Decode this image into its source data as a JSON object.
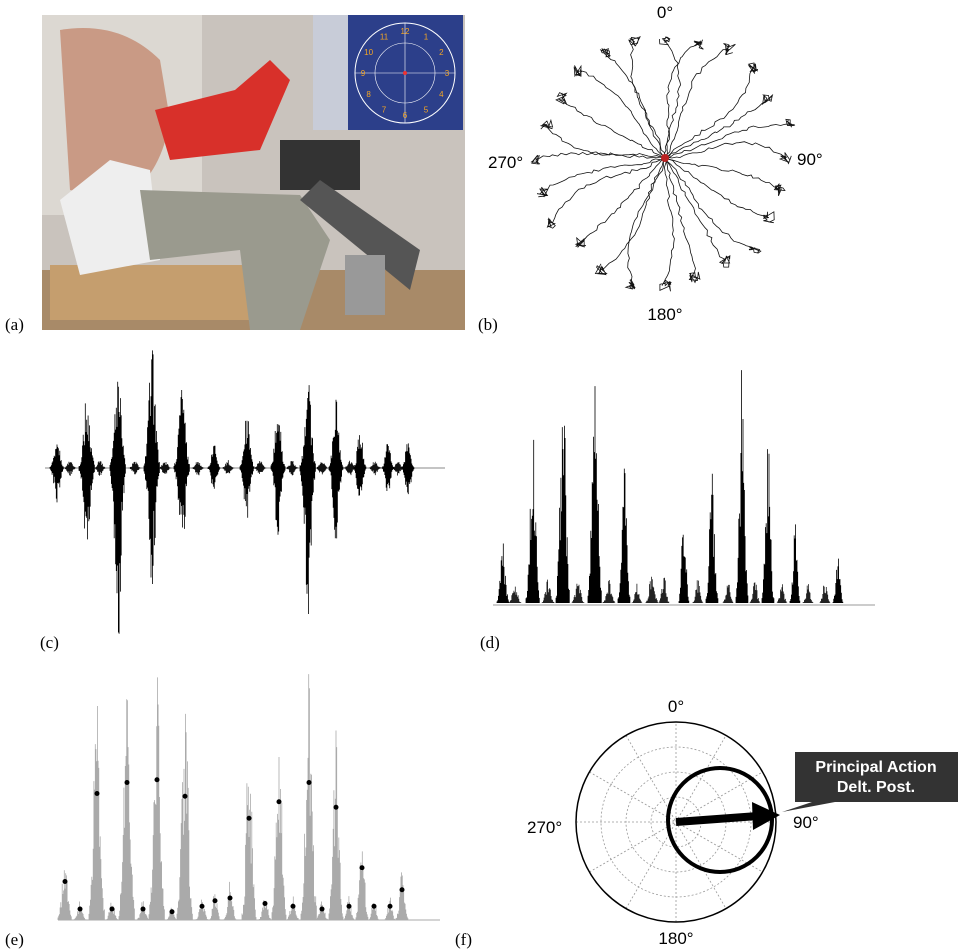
{
  "panels": {
    "a": {
      "label": "(a)",
      "screen_numbers": [
        "12",
        "1",
        "2",
        "3",
        "4",
        "5",
        "6",
        "7",
        "8",
        "9",
        "10",
        "11"
      ]
    },
    "b": {
      "label": "(b)",
      "directions": [
        "0°",
        "90°",
        "180°",
        "270°"
      ]
    },
    "c": {
      "label": "(c)"
    },
    "d": {
      "label": "(d)"
    },
    "e": {
      "label": "(e)"
    },
    "f": {
      "label": "(f)",
      "directions": [
        "0°",
        "90°",
        "180°",
        "270°"
      ],
      "callout": [
        "Principal Action",
        "Delt. Post."
      ]
    }
  }
}
